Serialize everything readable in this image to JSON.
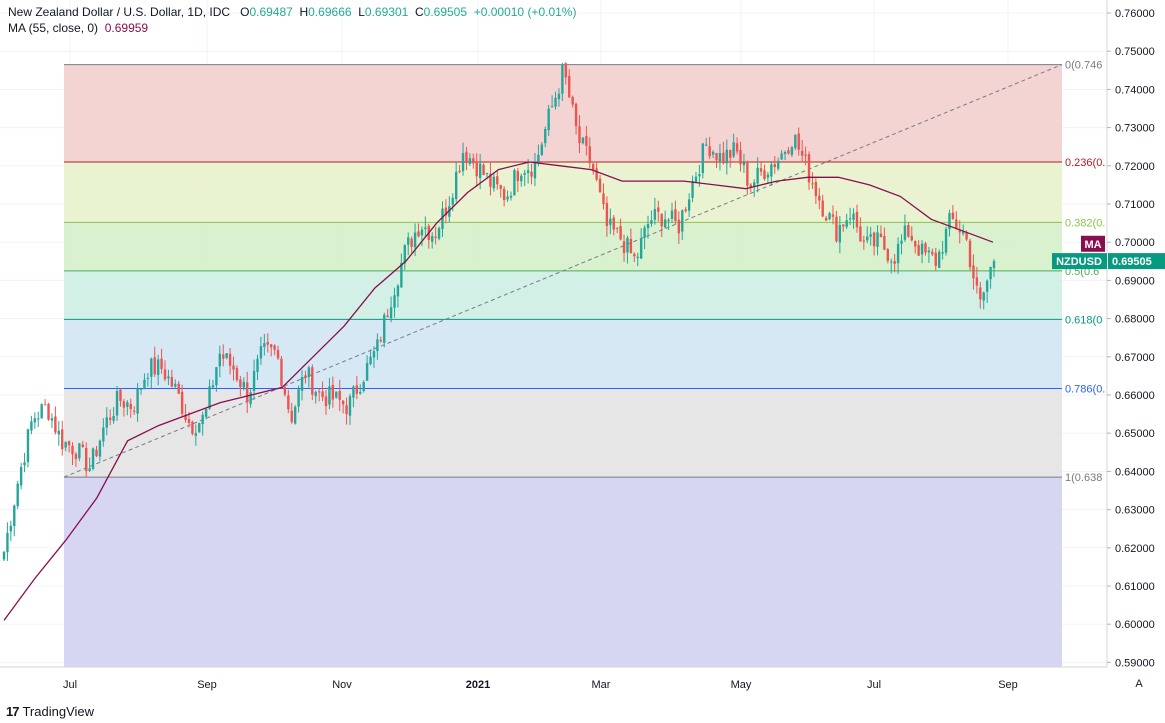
{
  "legend": {
    "symbol": "New Zealand Dollar / U.S. Dollar, 1D, IDC",
    "o_label": "O",
    "o": "0.69487",
    "h_label": "H",
    "h": "0.69666",
    "l_label": "L",
    "l": "0.69301",
    "c_label": "C",
    "c": "0.69505",
    "change": "+0.00010 (+0.01%)",
    "ma_label": "MA (55, close, 0)",
    "ma_value": "0.69959"
  },
  "colors": {
    "up": "#26a69a",
    "down": "#ef5350",
    "ma": "#880e4f",
    "price_badge": "#089981",
    "ma_badge": "#880e4f"
  },
  "badges": {
    "ma": "MA",
    "price_symbol": "NZDUSD",
    "price_value": "0.69505"
  },
  "footer": {
    "brand": "TradingView",
    "axis_button": "A"
  },
  "chart_data": {
    "type": "candlestick",
    "title": "New Zealand Dollar / U.S. Dollar, 1D, IDC",
    "ylim": [
      0.5865,
      0.7645
    ],
    "yticks": [
      "0.76000",
      "0.75000",
      "0.74000",
      "0.73000",
      "0.72000",
      "0.71000",
      "0.70000",
      "0.69000",
      "0.68000",
      "0.67000",
      "0.66000",
      "0.65000",
      "0.64000",
      "0.63000",
      "0.62000",
      "0.61000",
      "0.60000",
      "0.59000"
    ],
    "xticks": [
      "Jul",
      "Sep",
      "Nov",
      "2021",
      "Mar",
      "May",
      "Jul",
      "Sep"
    ],
    "fib_levels": [
      {
        "ratio": 0,
        "price": 0.7465,
        "label": "0(0.746",
        "color": "#787b86",
        "fill": "#f3cfce"
      },
      {
        "ratio": 0.236,
        "price": 0.721,
        "label": "0.236(0.",
        "color": "#b71c1c",
        "fill": "#e8f2cc"
      },
      {
        "ratio": 0.382,
        "price": 0.7052,
        "label": "0.382(0.",
        "color": "#8bc34a",
        "fill": "#d5f0c9"
      },
      {
        "ratio": 0.5,
        "price": 0.6925,
        "label": "0.5(0.6",
        "color": "#4caf50",
        "fill": "#cdeee3"
      },
      {
        "ratio": 0.618,
        "price": 0.6798,
        "label": "0.618(0",
        "color": "#089981",
        "fill": "#d2e6f2"
      },
      {
        "ratio": 0.786,
        "price": 0.6617,
        "label": "0.786(0.",
        "color": "#2962ff",
        "fill": "#e3e3e3"
      },
      {
        "ratio": 1,
        "price": 0.6385,
        "label": "1(0.638",
        "color": "#787b86",
        "fill": "#d1d1f2"
      }
    ],
    "ohlc_close_path": [
      0.619,
      0.638,
      0.654,
      0.657,
      0.648,
      0.646,
      0.641,
      0.652,
      0.659,
      0.657,
      0.667,
      0.667,
      0.661,
      0.652,
      0.654,
      0.671,
      0.667,
      0.66,
      0.671,
      0.671,
      0.654,
      0.666,
      0.66,
      0.659,
      0.657,
      0.665,
      0.672,
      0.686,
      0.698,
      0.705,
      0.702,
      0.711,
      0.724,
      0.72,
      0.715,
      0.712,
      0.72,
      0.72,
      0.733,
      0.745,
      0.727,
      0.72,
      0.704,
      0.701,
      0.695,
      0.706,
      0.707,
      0.704,
      0.716,
      0.726,
      0.722,
      0.724,
      0.715,
      0.719,
      0.722,
      0.728,
      0.719,
      0.71,
      0.703,
      0.708,
      0.699,
      0.7,
      0.696,
      0.703,
      0.697,
      0.695,
      0.706,
      0.702,
      0.683,
      0.696
    ],
    "ma_series": [
      0.601,
      0.612,
      0.622,
      0.633,
      0.648,
      0.652,
      0.655,
      0.658,
      0.66,
      0.662,
      0.67,
      0.678,
      0.688,
      0.695,
      0.705,
      0.713,
      0.719,
      0.721,
      0.72,
      0.719,
      0.716,
      0.716,
      0.716,
      0.715,
      0.714,
      0.716,
      0.717,
      0.717,
      0.715,
      0.712,
      0.706,
      0.703,
      0.7
    ],
    "trend_line": {
      "from": 0.6385,
      "to": 0.7465,
      "style": "dashed"
    }
  }
}
